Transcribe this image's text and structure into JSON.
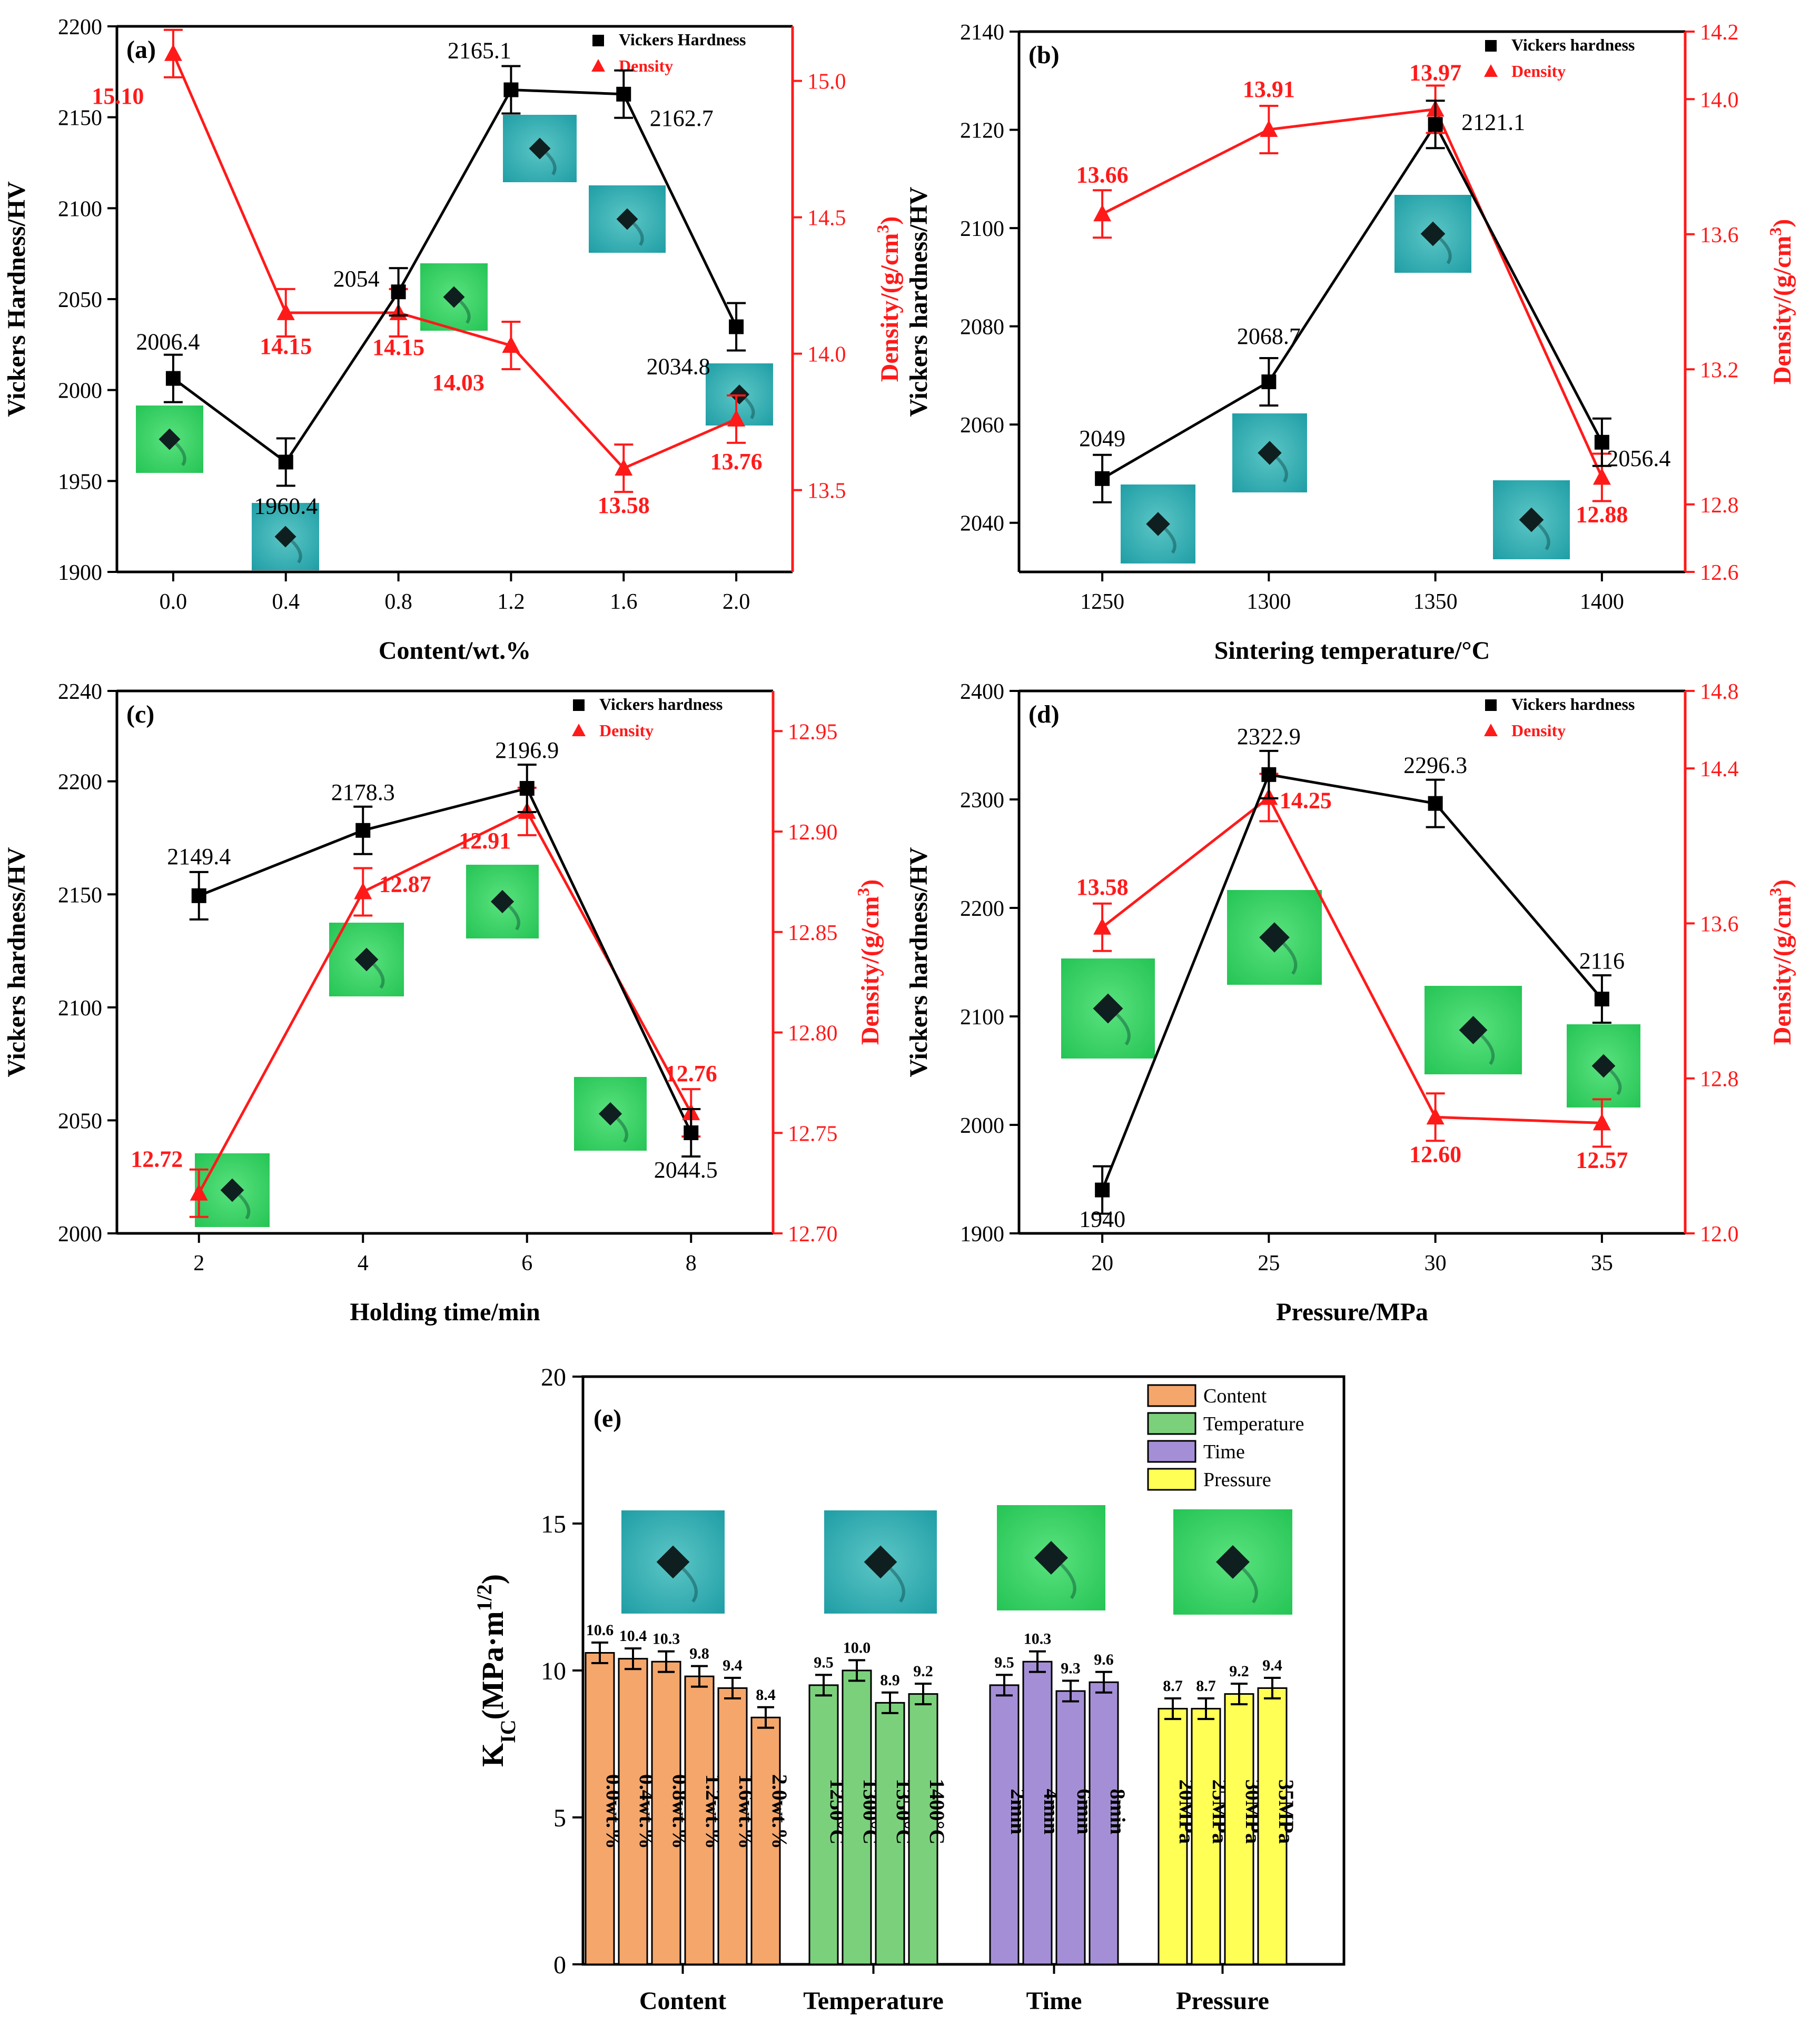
{
  "colors": {
    "hardness": "#000000",
    "density": "#ff1a1a",
    "content_bar": "#f5a66b",
    "temperature_bar": "#7bd17b",
    "time_bar": "#a48fd6",
    "pressure_bar": "#ffff55",
    "inset_cyan": "#2ab3b3",
    "inset_green": "#3ed66a"
  },
  "chart_data": [
    {
      "panel": "(a)",
      "type": "line",
      "xlabel": "Content/wt.%",
      "ylabel_left": "Vickers Hardness/HV",
      "ylabel_right": "Density/(g/cm",
      "ylabel_right_sup": "3",
      "ylabel_right_end": ")",
      "legend": [
        "Vickers Hardness",
        "Density"
      ],
      "x": [
        0.0,
        0.4,
        0.8,
        1.2,
        1.6,
        2.0
      ],
      "xticks": [
        "0.0",
        "0.4",
        "0.8",
        "1.2",
        "1.6",
        "2.0"
      ],
      "xlim": [
        -0.2,
        2.2
      ],
      "ylim_left": [
        1900,
        2200
      ],
      "yticks_left": [
        "1900",
        "1950",
        "2000",
        "2050",
        "2100",
        "2150",
        "2200"
      ],
      "ylim_right": [
        13.2,
        15.2
      ],
      "yticks_right": [
        "13.5",
        "14.0",
        "14.5",
        "15.0"
      ],
      "hardness": [
        2006.4,
        1960.4,
        2054,
        2165.1,
        2162.7,
        2034.8
      ],
      "hardness_labels": [
        "2006.4",
        "1960.4",
        "2054",
        "2165.1",
        "2162.7",
        "2034.8"
      ],
      "density": [
        15.1,
        14.15,
        14.15,
        14.03,
        13.58,
        13.76
      ],
      "density_labels": [
        "15.10",
        "14.15",
        "14.15",
        "14.03",
        "13.58",
        "13.76"
      ]
    },
    {
      "panel": "(b)",
      "type": "line",
      "xlabel": "Sintering temperature/°C",
      "ylabel_left": "Vickers hardness/HV",
      "ylabel_right": "Density/(g/cm",
      "ylabel_right_sup": "3",
      "ylabel_right_end": ")",
      "legend": [
        "Vickers hardness",
        "Density"
      ],
      "x": [
        1250,
        1300,
        1350,
        1400
      ],
      "xticks": [
        "1250",
        "1300",
        "1350",
        "1400"
      ],
      "xlim": [
        1225,
        1425
      ],
      "ylim_left": [
        2030,
        2140
      ],
      "yticks_left": [
        "2040",
        "2060",
        "2080",
        "2100",
        "2120",
        "2140"
      ],
      "ylim_right": [
        12.6,
        14.2
      ],
      "yticks_right": [
        "12.6",
        "12.8",
        "13.2",
        "13.6",
        "14.0",
        "14.2"
      ],
      "hardness": [
        2049,
        2068.7,
        2121.1,
        2056.4
      ],
      "hardness_labels": [
        "2049",
        "2068.7",
        "2121.1",
        "2056.4"
      ],
      "density": [
        13.66,
        13.91,
        13.97,
        12.88
      ],
      "density_labels": [
        "13.66",
        "13.91",
        "13.97",
        "12.88"
      ]
    },
    {
      "panel": "(c)",
      "type": "line",
      "xlabel": "Holding time/min",
      "ylabel_left": "Vickers hardness/HV",
      "ylabel_right": "Density/(g/cm",
      "ylabel_right_sup": "3",
      "ylabel_right_end": ")",
      "legend": [
        "Vickers hardness",
        "Density"
      ],
      "x": [
        2,
        4,
        6,
        8
      ],
      "xticks": [
        "2",
        "4",
        "6",
        "8"
      ],
      "xlim": [
        1,
        9
      ],
      "ylim_left": [
        2000,
        2240
      ],
      "yticks_left": [
        "2000",
        "2050",
        "2100",
        "2150",
        "2200",
        "2240"
      ],
      "ylim_right": [
        12.7,
        12.97
      ],
      "yticks_right": [
        "12.70",
        "12.75",
        "12.80",
        "12.85",
        "12.90",
        "12.95"
      ],
      "hardness": [
        2149.4,
        2178.3,
        2196.9,
        2044.5
      ],
      "hardness_labels": [
        "2149.4",
        "2178.3",
        "2196.9",
        "2044.5"
      ],
      "density": [
        12.72,
        12.87,
        12.91,
        12.76
      ],
      "density_labels": [
        "12.72",
        "12.87",
        "12.91",
        "12.76"
      ]
    },
    {
      "panel": "(d)",
      "type": "line",
      "xlabel": "Pressure/MPa",
      "ylabel_left": "Vickers hardness/HV",
      "ylabel_right": "Density/(g/cm",
      "ylabel_right_sup": "3",
      "ylabel_right_end": ")",
      "legend": [
        "Vickers hardness",
        "Density"
      ],
      "x": [
        20,
        25,
        30,
        35
      ],
      "xticks": [
        "20",
        "25",
        "30",
        "35"
      ],
      "xlim": [
        17.5,
        37.5
      ],
      "ylim_left": [
        1900,
        2400
      ],
      "yticks_left": [
        "1900",
        "2000",
        "2100",
        "2200",
        "2300",
        "2400"
      ],
      "ylim_right": [
        12.0,
        14.8
      ],
      "yticks_right": [
        "12.0",
        "12.8",
        "13.6",
        "14.4",
        "14.8"
      ],
      "hardness": [
        1940,
        2322.9,
        2296.3,
        2116
      ],
      "hardness_labels": [
        "1940",
        "2322.9",
        "2296.3",
        "2116"
      ],
      "density": [
        13.58,
        14.25,
        12.6,
        12.57
      ],
      "density_labels": [
        "13.58",
        "14.25",
        "12.60",
        "12.57"
      ]
    },
    {
      "panel": "(e)",
      "type": "bar",
      "ylabel_main": "K",
      "ylabel_sub": "IC",
      "ylabel_rest": "(MPa·m",
      "ylabel_sup": "1/2",
      "ylabel_end": ")",
      "ylim": [
        0,
        20
      ],
      "yticks": [
        "0",
        "5",
        "10",
        "15",
        "20"
      ],
      "legend": [
        "Content",
        "Temperature",
        "Time",
        "Pressure"
      ],
      "groups": [
        {
          "name": "Content",
          "categories": [
            "0.0wt.%",
            "0.4wt.%",
            "0.8wt.%",
            "1.2wt.%",
            "1.6wt.%",
            "2.0wt.%"
          ],
          "values": [
            10.6,
            10.4,
            10.3,
            9.8,
            9.4,
            8.4
          ],
          "labels": [
            "10.6",
            "10.4",
            "10.3",
            "9.8",
            "9.4",
            "8.4"
          ]
        },
        {
          "name": "Temperature",
          "categories": [
            "1250°C",
            "1300°C",
            "1350°C",
            "1400°C"
          ],
          "values": [
            9.5,
            10.0,
            8.9,
            9.2
          ],
          "labels": [
            "9.5",
            "10.0",
            "8.9",
            "9.2"
          ]
        },
        {
          "name": "Time",
          "categories": [
            "2min",
            "4min",
            "6min",
            "8min"
          ],
          "values": [
            9.5,
            10.3,
            9.3,
            9.6
          ],
          "labels": [
            "9.5",
            "10.3",
            "9.3",
            "9.6"
          ]
        },
        {
          "name": "Pressure",
          "categories": [
            "20MPa",
            "25MPa",
            "30MPa",
            "35MPa"
          ],
          "values": [
            8.7,
            8.7,
            9.2,
            9.4
          ],
          "labels": [
            "8.7",
            "8.7",
            "9.2",
            "9.4"
          ]
        }
      ]
    }
  ]
}
